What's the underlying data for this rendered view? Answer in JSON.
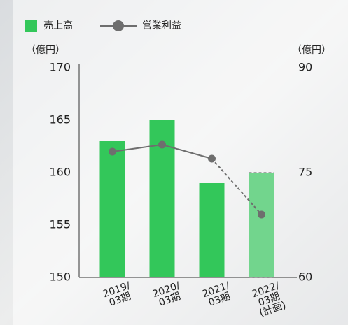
{
  "chart_data": {
    "type": "bar",
    "categories": [
      "2019/\n03期",
      "2020/\n03期",
      "2021/\n03期",
      "2022/\n03期\n(計画)"
    ],
    "ylabel": "（億円）",
    "y2label": "（億円）",
    "ylim": [
      150,
      170
    ],
    "yticks": [
      150,
      155,
      160,
      165,
      170
    ],
    "y2lim": [
      60,
      90
    ],
    "y2ticks": [
      60,
      75,
      90
    ],
    "planned": [
      false,
      false,
      false,
      true
    ],
    "series": [
      {
        "name": "売上高",
        "type": "bar",
        "color": "#33c75a",
        "planned_color": "#72d58d",
        "values": [
          163,
          165,
          159,
          160
        ]
      },
      {
        "name": "営業利益",
        "type": "line",
        "axis": "y2",
        "color": "#6e6e6e",
        "values": [
          78,
          79,
          77,
          69
        ]
      }
    ]
  }
}
